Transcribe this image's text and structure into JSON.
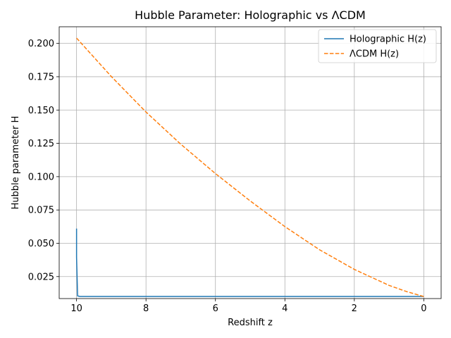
{
  "chart_data": {
    "type": "line",
    "title": "Hubble Parameter: Holographic vs ΛCDM",
    "xlabel": "Redshift z",
    "ylabel": "Hubble parameter H",
    "xlim": [
      10.5,
      -0.5
    ],
    "ylim": [
      0.0085,
      0.2125
    ],
    "x_ticks": [
      10,
      8,
      6,
      4,
      2,
      0
    ],
    "y_ticks": [
      0.025,
      0.05,
      0.075,
      0.1,
      0.125,
      0.15,
      0.175,
      0.2
    ],
    "y_tick_labels": [
      "0.025",
      "0.050",
      "0.075",
      "0.100",
      "0.125",
      "0.150",
      "0.175",
      "0.200"
    ],
    "grid": true,
    "legend": "top-right",
    "series": [
      {
        "name": "Holographic H(z)",
        "color": "#1f77b4",
        "style": "solid",
        "x": [
          10,
          10,
          9.97,
          9.9,
          9,
          8,
          7,
          6,
          5,
          4,
          3,
          2,
          1,
          0
        ],
        "y": [
          0.061,
          0.0395,
          0.0105,
          0.0101,
          0.0101,
          0.0101,
          0.0101,
          0.0101,
          0.0101,
          0.0101,
          0.0101,
          0.0101,
          0.0101,
          0.0101
        ]
      },
      {
        "name": "ΛCDM H(z)",
        "color": "#ff7f0e",
        "style": "dashed",
        "x": [
          10,
          9,
          8,
          7,
          6,
          5,
          4,
          3,
          2,
          1,
          0.5,
          0
        ],
        "y": [
          0.204,
          0.1752,
          0.1485,
          0.1244,
          0.1023,
          0.0818,
          0.0625,
          0.0451,
          0.0304,
          0.0184,
          0.0138,
          0.01
        ]
      }
    ]
  }
}
